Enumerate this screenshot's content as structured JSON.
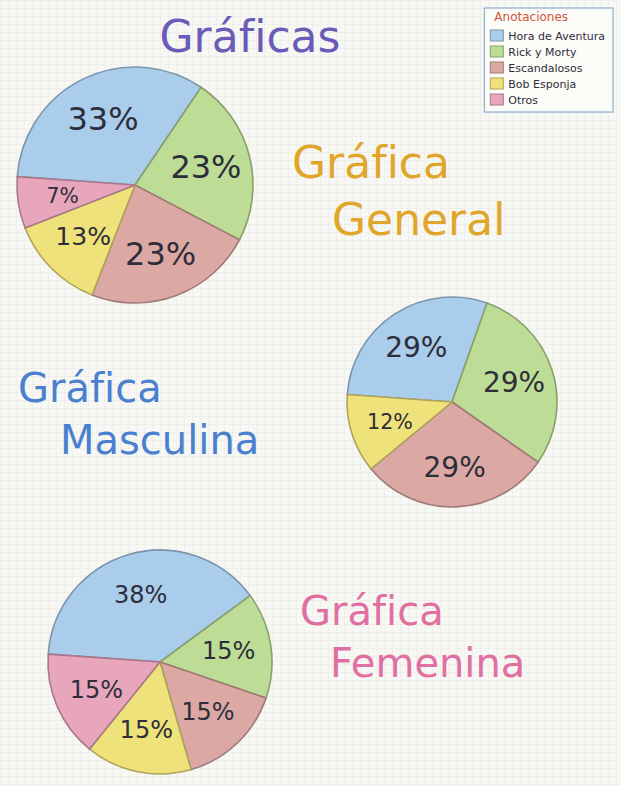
{
  "title": "Gráficas",
  "legend_title": "Anotaciones",
  "chart_data": [
    {
      "type": "pie",
      "title": "Gráfica General",
      "categories": [
        "Hora de Aventura",
        "Rick y Morty",
        "Escandalosos",
        "Bob Esponja",
        "Otros"
      ],
      "values": [
        33,
        23,
        23,
        13,
        7
      ],
      "value_labels": [
        "33%",
        "23%",
        "23%",
        "13%",
        "7%"
      ],
      "colors": [
        "#a9cdea",
        "#bddc95",
        "#dba8a4",
        "#f0e27a",
        "#e8a6bd"
      ],
      "data_labels": true,
      "legend": "top-right"
    },
    {
      "type": "pie",
      "title": "Gráfica Masculina",
      "values": [
        29,
        29,
        29,
        12
      ],
      "value_labels": [
        "29%",
        "29%",
        "29%",
        "12%"
      ],
      "colors": [
        "#a9cdea",
        "#bddc95",
        "#dba8a4",
        "#f0e27a"
      ],
      "data_labels": true
    },
    {
      "type": "pie",
      "title": "Gráfica Femenina",
      "values": [
        38,
        15,
        15,
        15,
        15
      ],
      "value_labels": [
        "38%",
        "15%",
        "15%",
        "15%",
        "15%"
      ],
      "colors": [
        "#a9cdea",
        "#bddc95",
        "#dba8a4",
        "#f0e27a",
        "#e8a6bd"
      ],
      "data_labels": true
    }
  ]
}
